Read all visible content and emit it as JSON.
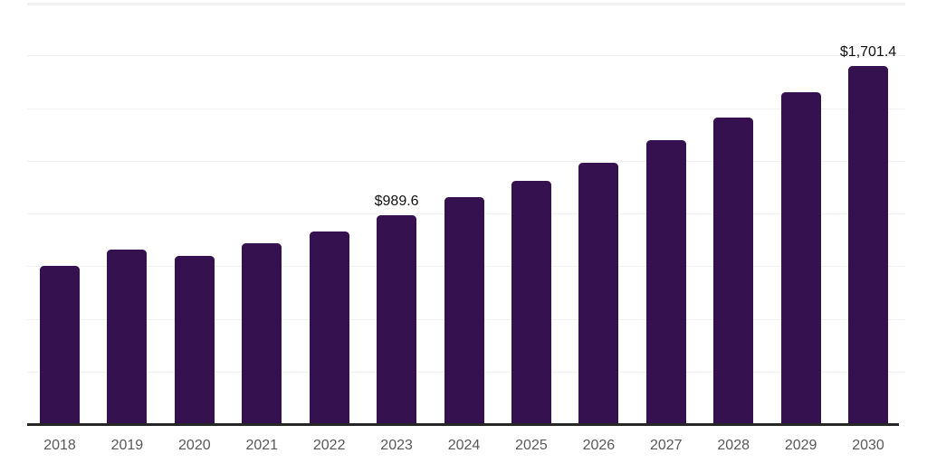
{
  "chart_data": {
    "type": "bar",
    "title": "",
    "xlabel": "",
    "ylabel": "",
    "categories": [
      "2018",
      "2019",
      "2020",
      "2021",
      "2022",
      "2023",
      "2024",
      "2025",
      "2026",
      "2027",
      "2028",
      "2029",
      "2030"
    ],
    "values": [
      753,
      829,
      800,
      858,
      914,
      989.6,
      1078,
      1155,
      1240,
      1346,
      1456,
      1575,
      1701.4
    ],
    "data_labels": {
      "2023": "$989.6",
      "2030": "$1,701.4"
    },
    "ylim": [
      0,
      2000
    ],
    "gridline_step": 250,
    "grid": "horizontal-only",
    "legend": "none",
    "y_axis_ticks_visible": false,
    "colors": {
      "bar": "#36114F",
      "gridline": "#f1f1f1",
      "axis_line": "#262626",
      "tick_label": "#595959",
      "data_label": "#111111",
      "background": "#ffffff"
    }
  }
}
